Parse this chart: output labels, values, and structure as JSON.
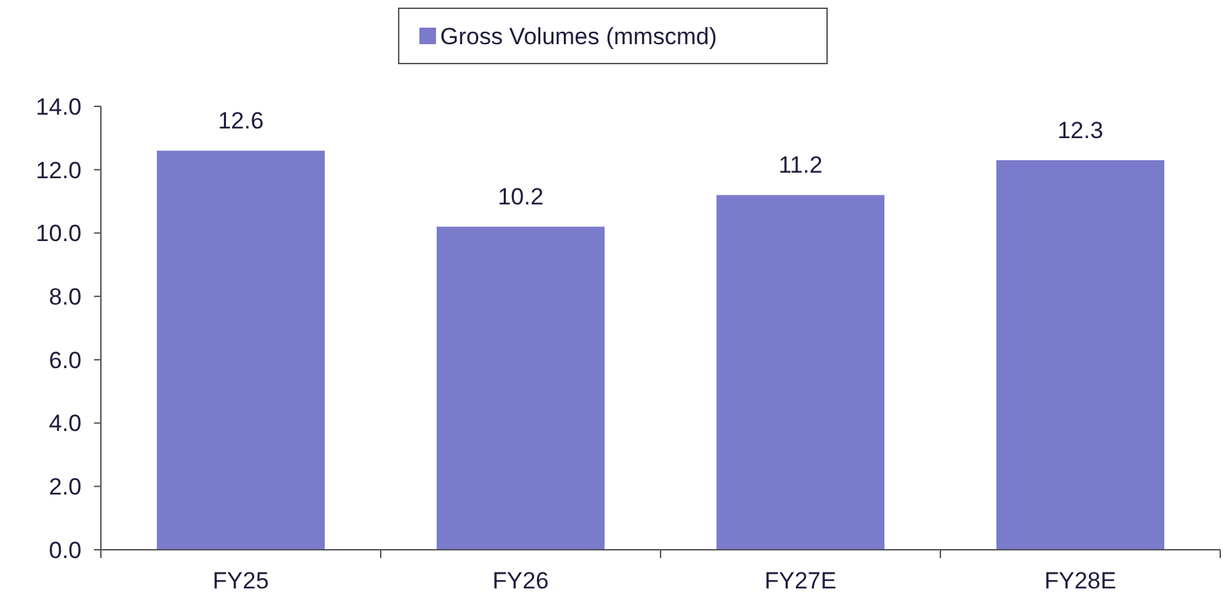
{
  "chart_data": {
    "type": "bar",
    "categories": [
      "FY25",
      "FY26",
      "FY27E",
      "FY28E"
    ],
    "series": [
      {
        "name": "Gross Volumes (mmscmd)",
        "color": "#7b7bcc",
        "values": [
          12.6,
          10.2,
          11.2,
          12.3
        ]
      }
    ],
    "ylim": [
      0,
      14
    ],
    "yticks": [
      {
        "value": 0,
        "label": "0.0"
      },
      {
        "value": 2,
        "label": "2.0"
      },
      {
        "value": 4,
        "label": "4.0"
      },
      {
        "value": 6,
        "label": "6.0"
      },
      {
        "value": 8,
        "label": "8.0"
      },
      {
        "value": 10,
        "label": "10.0"
      },
      {
        "value": 12,
        "label": "12.0"
      },
      {
        "value": 14,
        "label": "14.0"
      }
    ],
    "data_labels": true,
    "legend": "top",
    "grid": false
  }
}
